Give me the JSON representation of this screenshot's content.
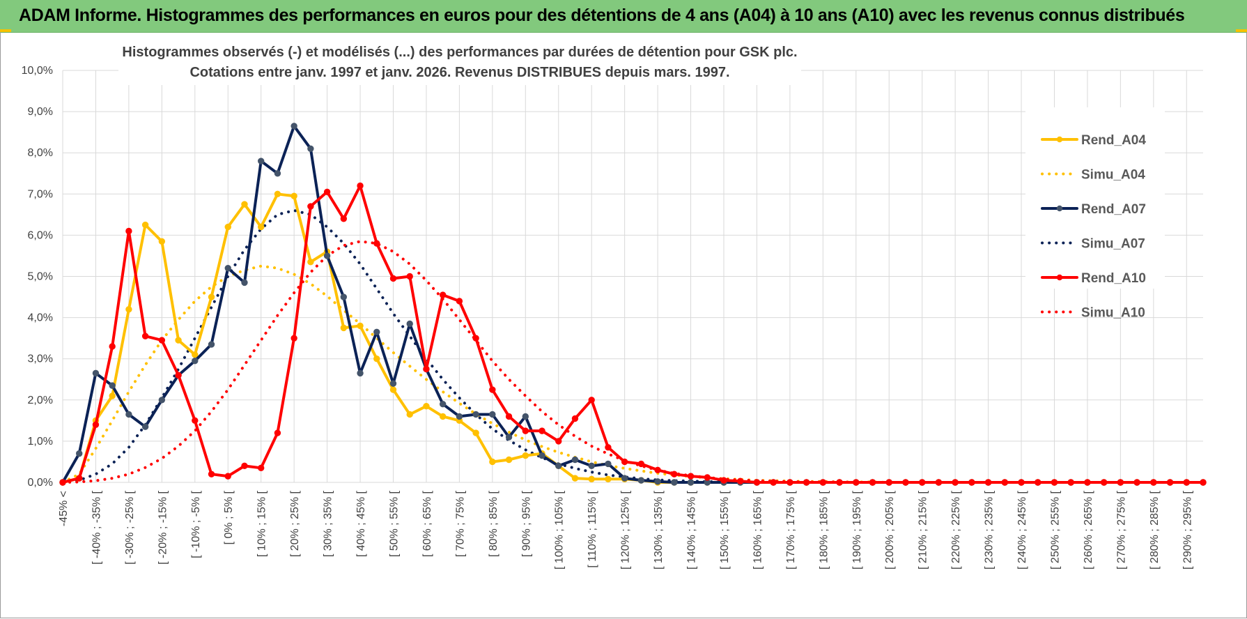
{
  "banner": {
    "title": "ADAM Informe. Histogrammes des performances en euros pour des détentions de 4 ans (A04) à 10 ans (A10) avec les revenus connus distribués",
    "background": "#82c97d"
  },
  "chart_data": {
    "type": "line",
    "title_line1": "Histogrammes observés (-) et modélisés (...) des performances par durées de détention pour GSK plc.",
    "title_line2": "Cotations entre janv. 1997 et janv. 2026. Revenus DISTRIBUES depuis mars. 1997.",
    "xlabel": "",
    "ylabel": "",
    "ylim": [
      0,
      10
    ],
    "y_ticks": [
      "0,0%",
      "1,0%",
      "2,0%",
      "3,0%",
      "4,0%",
      "5,0%",
      "6,0%",
      "7,0%",
      "8,0%",
      "9,0%",
      "10,0%"
    ],
    "grid": true,
    "legend_position": "right",
    "categories": [
      "-45% <",
      "[ -45% ; -40% [",
      "[ -40% ; -35% [",
      "[ -35% ; -30% [",
      "[ -30% ; -25% [",
      "[ -25% ; -20% [",
      "[ -20% ; -15% [",
      "[ -15% ; -10% [",
      "[ -10% ; -5% [",
      "[ -5% ; 0% [",
      "[ 0% ; 5% [",
      "[ 5% ; 10% [",
      "[ 10% ; 15% [",
      "[ 15% ; 20% [",
      "[ 20% ; 25% [",
      "[ 25% ; 30% [",
      "[ 30% ; 35% [",
      "[ 35% ; 40% [",
      "[ 40% ; 45% [",
      "[ 45% ; 50% [",
      "[ 50% ; 55% [",
      "[ 55% ; 60% [",
      "[ 60% ; 65% [",
      "[ 65% ; 70% [",
      "[ 70% ; 75% [",
      "[ 75% ; 80% [",
      "[ 80% ; 85% [",
      "[ 85% ; 90% [",
      "[ 90% ; 95% [",
      "[ 95% ; 100% [",
      "[ 100% ; 105% [",
      "[ 105% ; 110% [",
      "[ 110% ; 115% [",
      "[ 115% ; 120% [",
      "[ 120% ; 125% [",
      "[ 125% ; 130% [",
      "[ 130% ; 135% [",
      "[ 135% ; 140% [",
      "[ 140% ; 145% [",
      "[ 145% ; 150% [",
      "[ 150% ; 155% [",
      "[ 155% ; 160% [",
      "[ 160% ; 165% [",
      "[ 165% ; 170% [",
      "[ 170% ; 175% [",
      "[ 175% ; 180% [",
      "[ 180% ; 185% [",
      "[ 185% ; 190% [",
      "[ 190% ; 195% [",
      "[ 195% ; 200% [",
      "[ 200% ; 205% [",
      "[ 205% ; 210% [",
      "[ 210% ; 215% [",
      "[ 215% ; 220% [",
      "[ 220% ; 225% [",
      "[ 225% ; 230% [",
      "[ 230% ; 235% [",
      "[ 235% ; 240% [",
      "[ 240% ; 245% [",
      "[ 245% ; 250% [",
      "[ 250% ; 255% [",
      "[ 255% ; 260% [",
      "[ 260% ; 265% [",
      "[ 265% ; 270% [",
      "[ 270% ; 275% [",
      "[ 275% ; 280% [",
      "[ 280% ; 285% [",
      "[ 285% ; 290% [",
      "[ 290% ; 295% [",
      "[ 295% ; 300% ["
    ],
    "x_ticks": [
      "-45% <",
      "[ -40% ; -35% [",
      "[ -30% ; -25% [",
      "[ -20% ; -15% [",
      "[ -10% ; -5% [",
      "[ 0% ; 5% [",
      "[ 10% ; 15% [",
      "[ 20% ; 25% [",
      "[ 30% ; 35% [",
      "[ 40% ; 45% [",
      "[ 50% ; 55% [",
      "[ 60% ; 65% [",
      "[ 70% ; 75% [",
      "[ 80% ; 85% [",
      "[ 90% ; 95% [",
      "[ 100% ; 105% [",
      "[ 110% ; 115% [",
      "[ 120% ; 125% [",
      "[ 130% ; 135% [",
      "[ 140% ; 145% [",
      "[ 150% ; 155% [",
      "[ 160% ; 165% [",
      "[ 170% ; 175% [",
      "[ 180% ; 185% [",
      "[ 190% ; 195% [",
      "[ 200% ; 205% [",
      "[ 210% ; 215% [",
      "[ 220% ; 225% [",
      "[ 230% ; 235% [",
      "[ 240% ; 245% [",
      "[ 250% ; 255% [",
      "[ 260% ; 265% [",
      "[ 270% ; 275% [",
      "[ 280% ; 285% [",
      "[ 290% ; 295% ["
    ],
    "series": [
      {
        "name": "Rend_A04",
        "style": "solid",
        "markers": true,
        "color": "#ffc000",
        "values": [
          0,
          0.1,
          1.5,
          2.1,
          4.2,
          6.25,
          5.85,
          3.45,
          3.1,
          4.5,
          6.2,
          6.75,
          6.2,
          7.0,
          6.95,
          5.35,
          5.6,
          3.75,
          3.8,
          3.0,
          2.25,
          1.65,
          1.85,
          1.6,
          1.5,
          1.2,
          0.5,
          0.55,
          0.65,
          0.7,
          0.4,
          0.1,
          0.08,
          0.08,
          0.08,
          0.05,
          0,
          0,
          0,
          0,
          0,
          0,
          0,
          0,
          0,
          0,
          0,
          0,
          0,
          0,
          0,
          0,
          0,
          0,
          0,
          0,
          0,
          0,
          0,
          0,
          0,
          0,
          0,
          0,
          0,
          0,
          0,
          0,
          0,
          0
        ]
      },
      {
        "name": "Simu_A04",
        "style": "dotted",
        "markers": false,
        "color": "#ffc000",
        "values": [
          0,
          0.2,
          0.82,
          1.5,
          2.2,
          2.85,
          3.45,
          3.95,
          4.4,
          4.75,
          5.0,
          5.15,
          5.25,
          5.2,
          5.05,
          4.82,
          4.52,
          4.18,
          3.85,
          3.5,
          3.15,
          2.82,
          2.5,
          2.2,
          1.92,
          1.66,
          1.43,
          1.22,
          1.03,
          0.87,
          0.73,
          0.61,
          0.5,
          0.41,
          0.34,
          0.28,
          0.22,
          0.18,
          0.14,
          0.11,
          0.09,
          0.07,
          0.05,
          0.04,
          0.03,
          0.02,
          0.02,
          0.01,
          0.01,
          0.01,
          0,
          0,
          0,
          0,
          0,
          0,
          0,
          0,
          0,
          0,
          0,
          0,
          0,
          0,
          0,
          0,
          0,
          0,
          0,
          0
        ]
      },
      {
        "name": "Rend_A07",
        "style": "solid",
        "markers": true,
        "color": "#0b2256",
        "values": [
          0,
          0.7,
          2.65,
          2.35,
          1.65,
          1.35,
          2.0,
          2.6,
          2.95,
          3.35,
          5.2,
          4.85,
          7.8,
          7.5,
          8.65,
          8.1,
          5.5,
          4.5,
          2.65,
          3.65,
          2.4,
          3.85,
          2.75,
          1.9,
          1.6,
          1.65,
          1.65,
          1.1,
          1.6,
          0.65,
          0.4,
          0.55,
          0.4,
          0.45,
          0.1,
          0.05,
          0.02,
          0,
          0,
          0,
          0,
          0,
          0,
          0,
          0,
          0,
          0,
          0,
          0,
          0,
          0,
          0,
          0,
          0,
          0,
          0,
          0,
          0,
          0,
          0,
          0,
          0,
          0,
          0,
          0,
          0,
          0,
          0,
          0,
          0
        ]
      },
      {
        "name": "Simu_A07",
        "style": "dotted",
        "markers": false,
        "color": "#0b2256",
        "values": [
          0,
          0.05,
          0.2,
          0.45,
          0.85,
          1.4,
          2.05,
          2.75,
          3.5,
          4.25,
          5.0,
          5.65,
          6.15,
          6.5,
          6.6,
          6.5,
          6.2,
          5.8,
          5.3,
          4.7,
          4.1,
          3.55,
          3.0,
          2.5,
          2.05,
          1.65,
          1.3,
          1.02,
          0.79,
          0.6,
          0.45,
          0.34,
          0.25,
          0.18,
          0.13,
          0.09,
          0.06,
          0.04,
          0.03,
          0.02,
          0.01,
          0.01,
          0,
          0,
          0,
          0,
          0,
          0,
          0,
          0,
          0,
          0,
          0,
          0,
          0,
          0,
          0,
          0,
          0,
          0,
          0,
          0,
          0,
          0,
          0,
          0,
          0,
          0,
          0,
          0
        ]
      },
      {
        "name": "Rend_A10",
        "style": "solid",
        "markers": true,
        "color": "#ff0000",
        "values": [
          0,
          0.1,
          1.4,
          3.3,
          6.1,
          3.55,
          3.45,
          2.6,
          1.5,
          0.2,
          0.15,
          0.4,
          0.35,
          1.2,
          3.5,
          6.7,
          7.05,
          6.4,
          7.2,
          5.8,
          4.95,
          5.0,
          2.75,
          4.55,
          4.4,
          3.5,
          2.25,
          1.6,
          1.25,
          1.25,
          1.0,
          1.55,
          2.0,
          0.85,
          0.5,
          0.45,
          0.3,
          0.2,
          0.15,
          0.12,
          0.05,
          0.03,
          0,
          0,
          0,
          0,
          0,
          0,
          0,
          0,
          0,
          0,
          0,
          0,
          0,
          0,
          0,
          0,
          0,
          0,
          0,
          0,
          0,
          0,
          0,
          0,
          0,
          0,
          0,
          0
        ]
      },
      {
        "name": "Simu_A10",
        "style": "dotted",
        "markers": false,
        "color": "#ff0000",
        "values": [
          0,
          0.01,
          0.04,
          0.1,
          0.2,
          0.36,
          0.58,
          0.88,
          1.25,
          1.72,
          2.25,
          2.85,
          3.45,
          4.05,
          4.6,
          5.1,
          5.5,
          5.75,
          5.85,
          5.8,
          5.6,
          5.3,
          4.9,
          4.45,
          3.95,
          3.45,
          2.95,
          2.5,
          2.1,
          1.72,
          1.4,
          1.12,
          0.88,
          0.69,
          0.53,
          0.4,
          0.3,
          0.22,
          0.16,
          0.12,
          0.08,
          0.06,
          0.04,
          0.03,
          0.02,
          0.01,
          0.01,
          0.01,
          0,
          0,
          0,
          0,
          0,
          0,
          0,
          0,
          0,
          0,
          0,
          0,
          0,
          0,
          0,
          0,
          0,
          0,
          0,
          0,
          0,
          0
        ]
      }
    ]
  }
}
